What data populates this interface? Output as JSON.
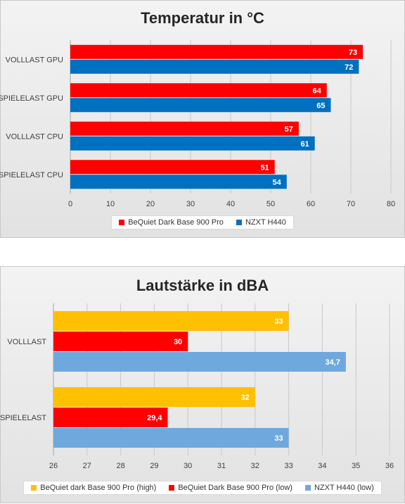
{
  "charts": [
    {
      "chart_data": {
        "type": "bar",
        "orientation": "horizontal",
        "title": "Temperatur in °C",
        "categories": [
          "VOLLLAST GPU",
          "SPIELELAST GPU",
          "VOLLLAST CPU",
          "SPIELELAST CPU"
        ],
        "series": [
          {
            "name": "BeQuiet Dark Base 900 Pro",
            "color": "#ff0000",
            "values": [
              73,
              64,
              57,
              51
            ],
            "labels": [
              "73",
              "64",
              "57",
              "51"
            ]
          },
          {
            "name": "NZXT H440",
            "color": "#0070c0",
            "values": [
              72,
              65,
              61,
              54
            ],
            "labels": [
              "72",
              "65",
              "61",
              "54"
            ]
          }
        ],
        "xlim": [
          0,
          80
        ],
        "ticks": [
          0,
          10,
          20,
          30,
          40,
          50,
          60,
          70,
          80
        ],
        "tick_labels": [
          "0",
          "10",
          "20",
          "30",
          "40",
          "50",
          "60",
          "70",
          "80"
        ],
        "grid": true,
        "legend": "bottom"
      }
    },
    {
      "chart_data": {
        "type": "bar",
        "orientation": "horizontal",
        "title": "Lautstärke in dBA",
        "categories": [
          "VOLLLAST",
          "SPIELELAST"
        ],
        "series": [
          {
            "name": "BeQuiet dark Base 900 Pro (high)",
            "color": "#ffc000",
            "values": [
              33,
              32
            ],
            "labels": [
              "33",
              "32"
            ]
          },
          {
            "name": "BeQuiet Dark Base 900 Pro (low)",
            "color": "#ff0000",
            "values": [
              30,
              29.4
            ],
            "labels": [
              "30",
              "29,4"
            ]
          },
          {
            "name": "NZXT H440 (low)",
            "color": "#6fa8dc",
            "values": [
              34.7,
              33
            ],
            "labels": [
              "34,7",
              "33"
            ]
          }
        ],
        "xlim": [
          26,
          36
        ],
        "ticks": [
          26,
          27,
          28,
          29,
          30,
          31,
          32,
          33,
          34,
          35,
          36
        ],
        "tick_labels": [
          "26",
          "27",
          "28",
          "29",
          "30",
          "31",
          "32",
          "33",
          "34",
          "35",
          "36"
        ],
        "grid": true,
        "legend": "bottom"
      }
    }
  ]
}
